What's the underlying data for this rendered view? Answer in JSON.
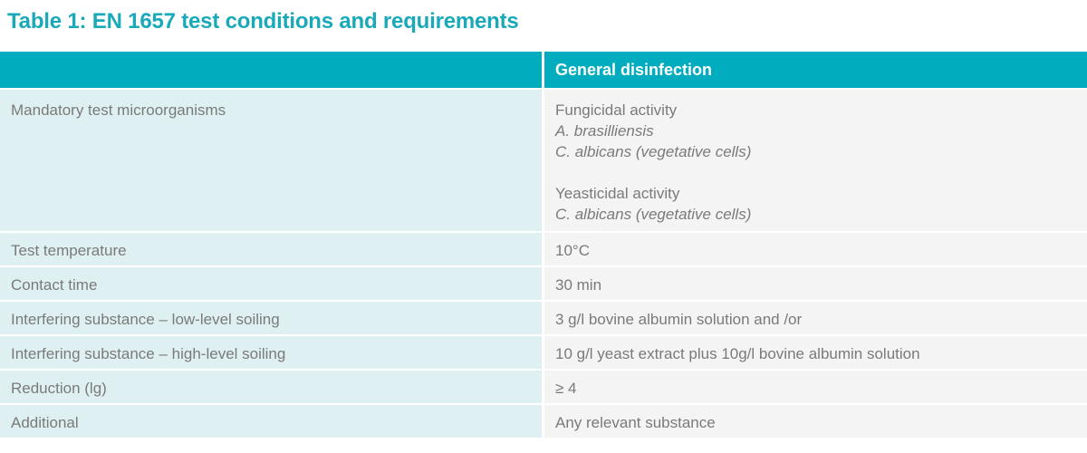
{
  "title": "Table 1: EN 1657 test conditions and requirements",
  "header": {
    "col1": "",
    "col2": "General disinfection"
  },
  "rows": [
    {
      "label": "Mandatory test microorganisms",
      "groups": [
        {
          "heading": "Fungicidal activity",
          "items": [
            "A. brasilliensis",
            "C. albicans (vegetative cells)"
          ]
        },
        {
          "heading": "Yeasticidal activity",
          "items": [
            "C. albicans (vegetative cells)"
          ]
        }
      ]
    },
    {
      "label": "Test temperature",
      "value": "10°C"
    },
    {
      "label": "Contact time",
      "value": "30 min"
    },
    {
      "label": "Interfering substance – low-level soiling",
      "value": "3 g/l bovine albumin solution and /or"
    },
    {
      "label": "Interfering substance – high-level soiling",
      "value": "10 g/l yeast extract plus 10g/l bovine albumin solution"
    },
    {
      "label": "Reduction (lg)",
      "value": "≥ 4"
    },
    {
      "label": "Additional",
      "value": "Any relevant substance"
    }
  ]
}
